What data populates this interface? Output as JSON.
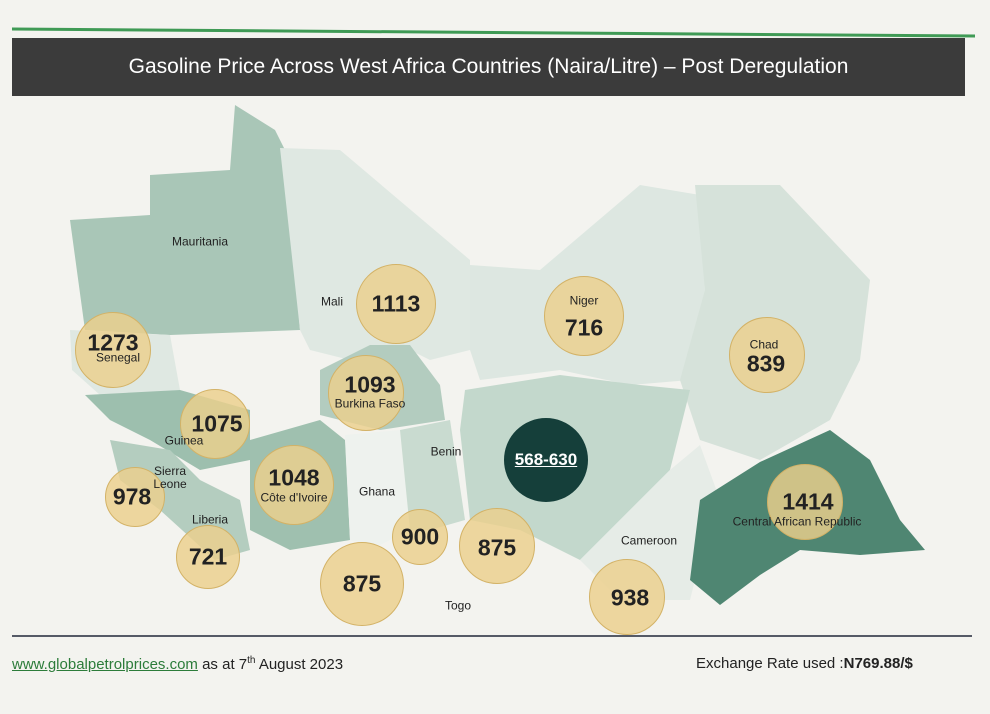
{
  "title": "Gasoline Price Across West Africa Countries (Naira/Litre) – Post Deregulation",
  "countries": [
    {
      "name": "Mauritania"
    },
    {
      "name": "Senegal",
      "price": 1273
    },
    {
      "name": "Mali",
      "price": 1113
    },
    {
      "name": "Niger",
      "price": 716
    },
    {
      "name": "Chad",
      "price": 839
    },
    {
      "name": "Burkina Faso",
      "price": 1093
    },
    {
      "name": "Guinea",
      "price": 1075
    },
    {
      "price": "568-630"
    },
    {
      "name": "Benin",
      "price": 875
    },
    {
      "name": "Sierra Leone",
      "price": 978
    },
    {
      "name": "Côte d'Ivoire",
      "price": 1048
    },
    {
      "name": "Ghana",
      "price": 875
    },
    {
      "name": "Liberia",
      "price": 721
    },
    {
      "name": "Togo",
      "price": 900
    },
    {
      "name": "Cameroon",
      "price": 938
    },
    {
      "name": "Central African Republic",
      "price": 1414
    }
  ],
  "footer": {
    "source": "www.globalpetrolprices.com",
    "date_prefix": "as at 7",
    "date_suffix": "th",
    "date_rest": "August 2023",
    "exchange_label": "Exchange Rate used :",
    "exchange_value": "N769.88/$"
  }
}
